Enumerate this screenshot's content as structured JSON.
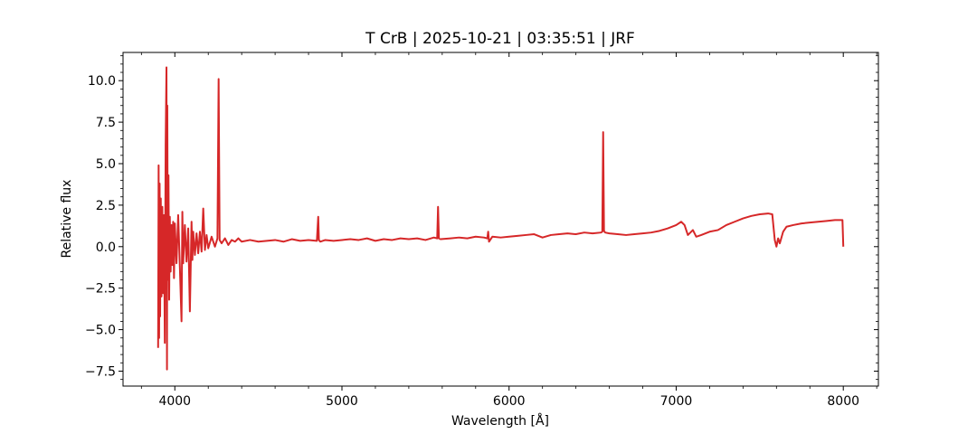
{
  "chart_data": {
    "type": "line",
    "title": "T CrB | 2025-10-21 | 03:35:51 | JRF",
    "xlabel": "Wavelength [Å]",
    "ylabel": "Relative flux",
    "xlim": [
      3690,
      8210
    ],
    "ylim": [
      -8.4,
      11.7
    ],
    "xticks": [
      4000,
      5000,
      6000,
      7000,
      8000
    ],
    "xtick_labels": [
      "4000",
      "5000",
      "6000",
      "7000",
      "8000"
    ],
    "yticks": [
      -7.5,
      -5.0,
      -2.5,
      0.0,
      2.5,
      5.0,
      7.5,
      10.0
    ],
    "ytick_labels": [
      "−7.5",
      "−5.0",
      "−2.5",
      "0.0",
      "2.5",
      "5.0",
      "7.5",
      "10.0"
    ],
    "grid": false,
    "line_color": "#d62728",
    "series": [
      {
        "x": [
          3900,
          3903,
          3906,
          3909,
          3912,
          3916,
          3920,
          3925,
          3930,
          3935,
          3940,
          3945,
          3950,
          3953,
          3955,
          3958,
          3962,
          3966,
          3970,
          3975,
          3980,
          3985,
          3990,
          3995,
          4000,
          4010,
          4020,
          4030,
          4040,
          4045,
          4050,
          4060,
          4070,
          4080,
          4090,
          4100,
          4105,
          4110,
          4120,
          4130,
          4140,
          4150,
          4160,
          4170,
          4180,
          4190,
          4200,
          4220,
          4240,
          4255,
          4262,
          4268,
          4280,
          4300,
          4320,
          4340,
          4360,
          4380,
          4400,
          4450,
          4500,
          4550,
          4600,
          4650,
          4700,
          4750,
          4800,
          4850,
          4858,
          4862,
          4866,
          4870,
          4900,
          4950,
          5000,
          5050,
          5100,
          5150,
          5200,
          5250,
          5300,
          5350,
          5400,
          5450,
          5500,
          5550,
          5570,
          5575,
          5580,
          5590,
          5650,
          5700,
          5750,
          5800,
          5850,
          5870,
          5875,
          5880,
          5900,
          5950,
          6000,
          6050,
          6100,
          6150,
          6200,
          6250,
          6300,
          6350,
          6400,
          6450,
          6500,
          6550,
          6558,
          6563,
          6568,
          6575,
          6600,
          6650,
          6700,
          6750,
          6800,
          6850,
          6900,
          6950,
          7000,
          7030,
          7050,
          7070,
          7100,
          7120,
          7150,
          7200,
          7250,
          7300,
          7350,
          7400,
          7450,
          7500,
          7550,
          7575,
          7590,
          7600,
          7610,
          7620,
          7640,
          7660,
          7700,
          7750,
          7800,
          7850,
          7900,
          7950,
          7995,
          8000
        ],
        "y": [
          -6.1,
          4.9,
          -5.5,
          3.8,
          -4.2,
          2.9,
          -3.0,
          2.4,
          -2.8,
          1.9,
          -5.8,
          6.1,
          10.8,
          -7.4,
          8.5,
          -2.0,
          4.3,
          -3.2,
          1.8,
          -1.5,
          1.3,
          -1.1,
          1.5,
          -1.9,
          1.4,
          -1.0,
          1.9,
          -1.2,
          -4.5,
          2.1,
          -1.0,
          1.3,
          -0.9,
          1.1,
          -3.9,
          1.5,
          -0.8,
          0.9,
          -0.5,
          0.8,
          -0.4,
          0.9,
          -0.3,
          2.3,
          -0.2,
          0.7,
          -0.1,
          0.6,
          0.0,
          0.5,
          10.1,
          0.4,
          0.2,
          0.5,
          0.1,
          0.4,
          0.3,
          0.5,
          0.3,
          0.4,
          0.3,
          0.35,
          0.4,
          0.3,
          0.45,
          0.35,
          0.4,
          0.35,
          1.8,
          0.4,
          0.35,
          0.3,
          0.4,
          0.35,
          0.4,
          0.45,
          0.4,
          0.5,
          0.35,
          0.45,
          0.4,
          0.5,
          0.45,
          0.5,
          0.4,
          0.55,
          0.5,
          2.4,
          0.5,
          0.45,
          0.5,
          0.55,
          0.5,
          0.6,
          0.55,
          0.5,
          0.9,
          0.3,
          0.6,
          0.55,
          0.6,
          0.65,
          0.7,
          0.75,
          0.55,
          0.7,
          0.75,
          0.8,
          0.75,
          0.85,
          0.8,
          0.85,
          0.9,
          6.9,
          0.95,
          0.85,
          0.8,
          0.75,
          0.7,
          0.75,
          0.8,
          0.85,
          0.95,
          1.1,
          1.3,
          1.5,
          1.3,
          0.7,
          1.0,
          0.6,
          0.7,
          0.9,
          1.0,
          1.3,
          1.5,
          1.7,
          1.85,
          1.95,
          2.0,
          1.95,
          0.4,
          0.0,
          0.5,
          0.2,
          0.9,
          1.2,
          1.3,
          1.4,
          1.45,
          1.5,
          1.55,
          1.6,
          1.6,
          0.0
        ]
      }
    ]
  }
}
